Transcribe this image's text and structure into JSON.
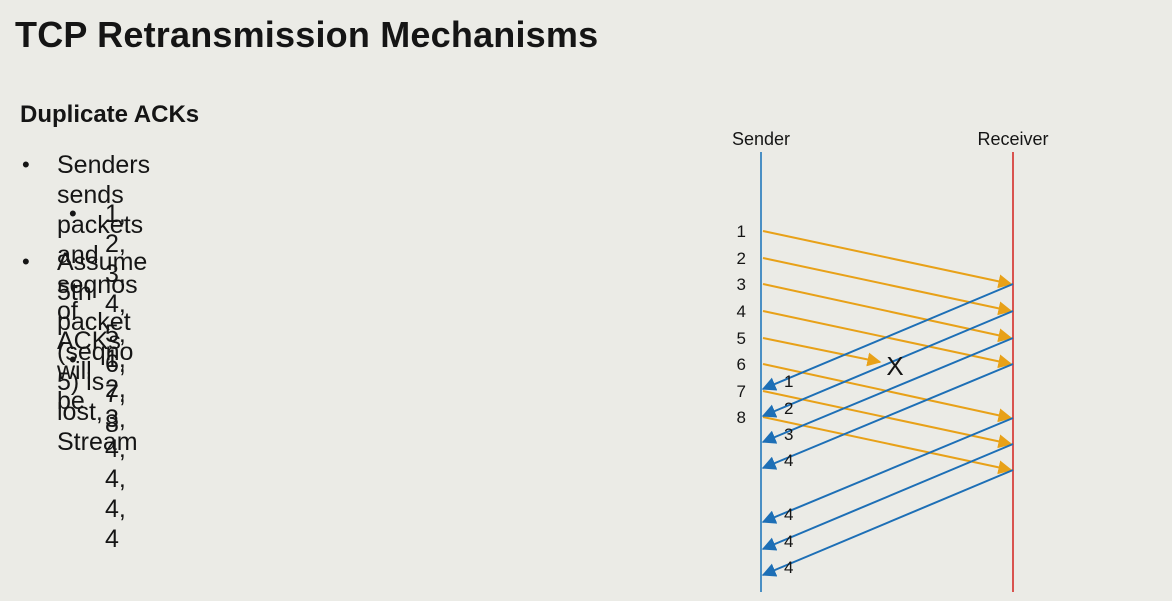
{
  "slide": {
    "title": "TCP Retransmission Mechanisms",
    "subheading": "Duplicate ACKs",
    "bullets": [
      {
        "level": 1,
        "text": "Senders sends packets and seqnos"
      },
      {
        "level": 2,
        "text": "1, 2, 3, 4, 5, 6, 7, 8"
      },
      {
        "level": 1,
        "text": "Assume 5th packet (seqno 5) is lost, Stream"
      },
      {
        "level": 1,
        "text": "of ACKs will be",
        "continuation": true
      },
      {
        "level": 2,
        "text": "1, 2, 3, 4, 4, 4, 4"
      }
    ]
  },
  "diagram": {
    "sender_label": "Sender",
    "receiver_label": "Receiver",
    "sender_line_color": "#4a8fc4",
    "receiver_line_color": "#d9534f",
    "packet_arrow_color": "#e8a118",
    "ack_arrow_color": "#1d6fb6",
    "loss_marker": "X",
    "packets": [
      {
        "seq": "1",
        "lost": false
      },
      {
        "seq": "2",
        "lost": false
      },
      {
        "seq": "3",
        "lost": false
      },
      {
        "seq": "4",
        "lost": false
      },
      {
        "seq": "5",
        "lost": true
      },
      {
        "seq": "6",
        "lost": false
      },
      {
        "seq": "7",
        "lost": false
      },
      {
        "seq": "8",
        "lost": false
      }
    ],
    "acks": [
      "1",
      "2",
      "3",
      "4",
      "4",
      "4",
      "4"
    ]
  }
}
